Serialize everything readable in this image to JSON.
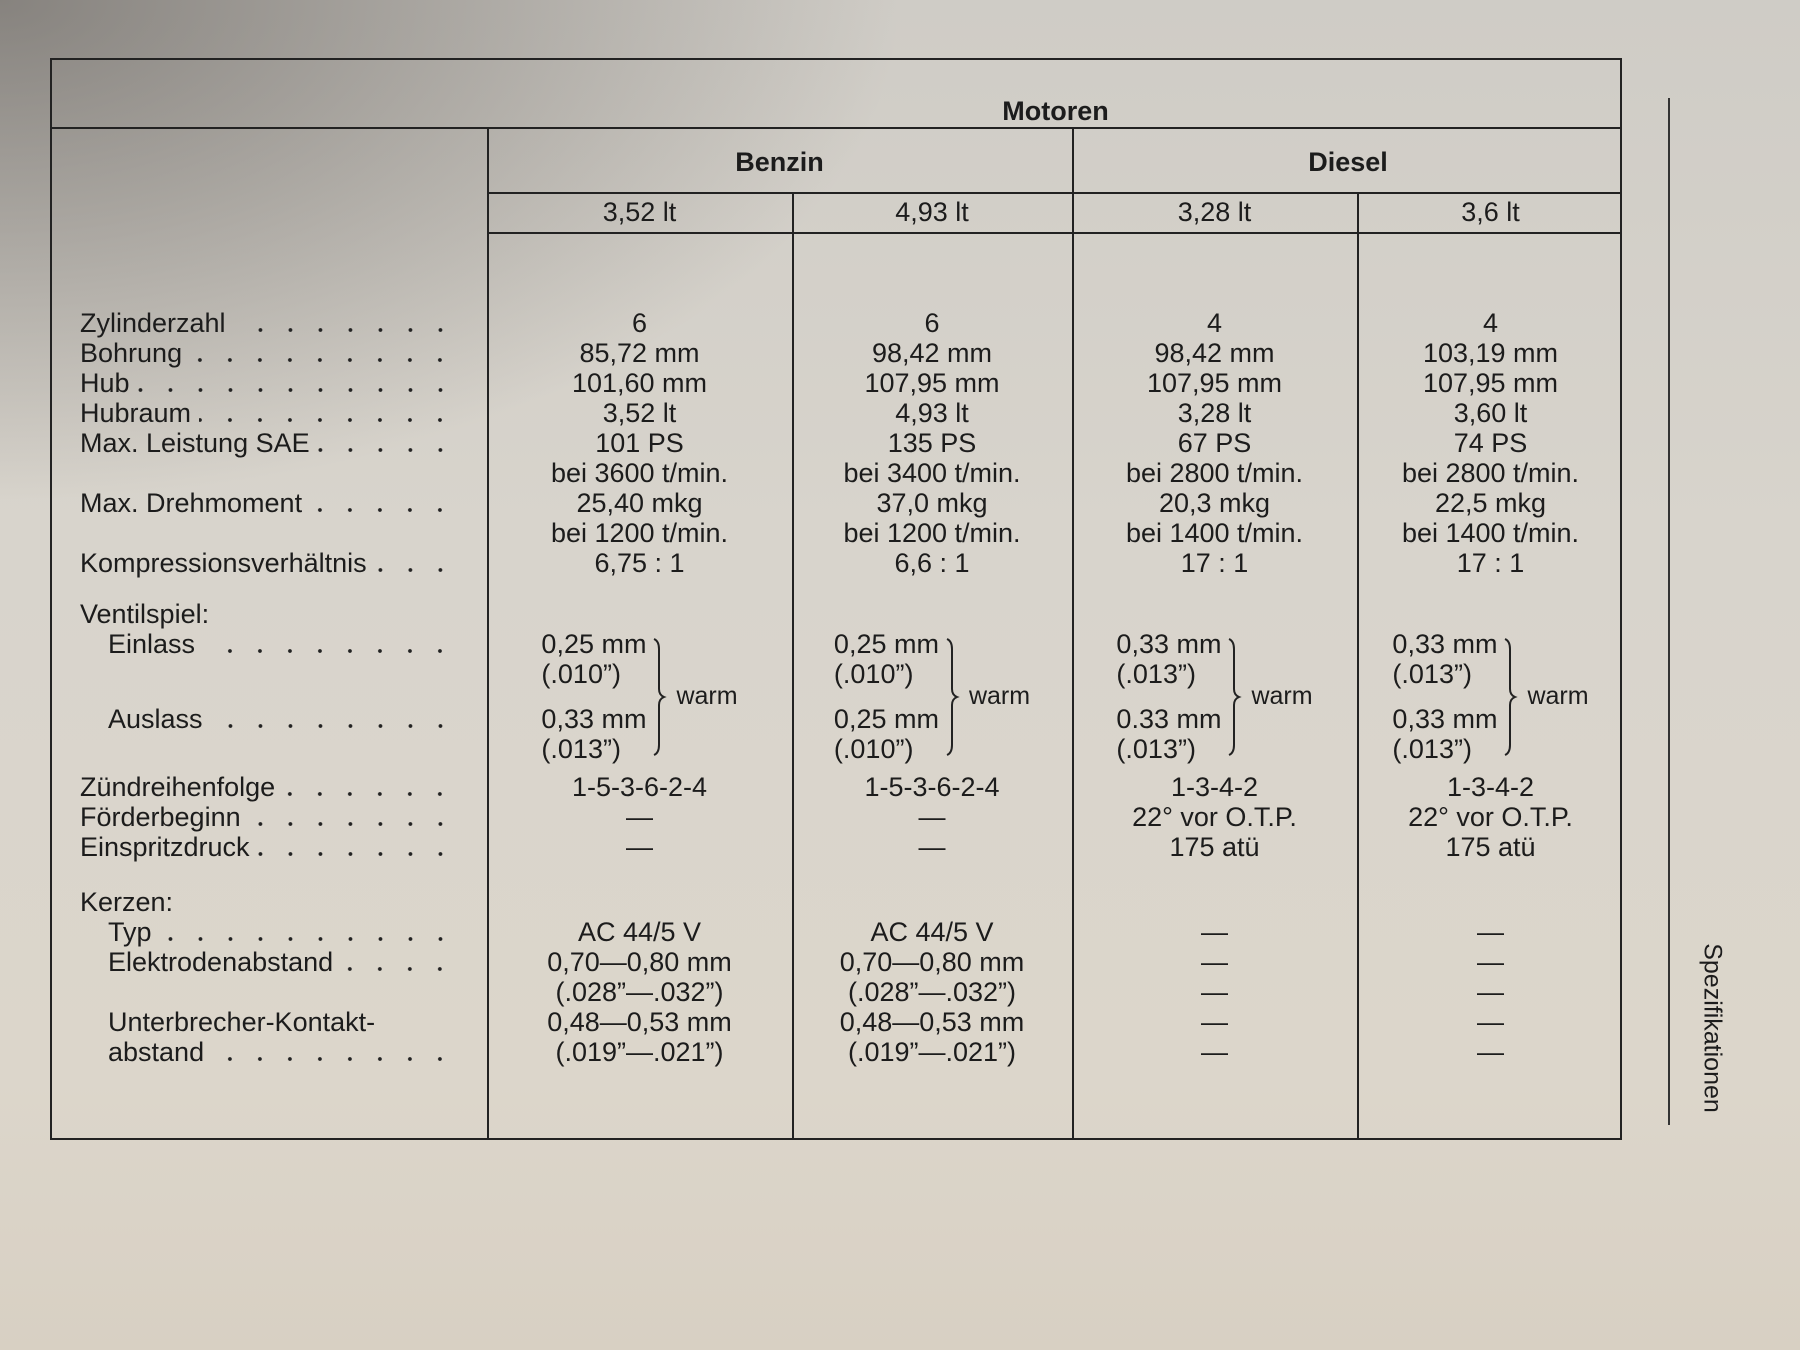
{
  "header": {
    "title": "Motoren",
    "groups": [
      {
        "label": "Benzin",
        "engines": [
          "3,52 lt",
          "4,93 lt"
        ]
      },
      {
        "label": "Diesel",
        "engines": [
          "3,28 lt",
          "3,6 lt"
        ]
      }
    ]
  },
  "main_rows": [
    {
      "label": "Zylinderzahl",
      "values": [
        "6",
        "6",
        "4",
        "4"
      ]
    },
    {
      "label": "Bohrung",
      "values": [
        "85,72 mm",
        "98,42 mm",
        "98,42 mm",
        "103,19 mm"
      ]
    },
    {
      "label": "Hub",
      "values": [
        "101,60 mm",
        "107,95 mm",
        "107,95 mm",
        "107,95 mm"
      ]
    },
    {
      "label": "Hubraum",
      "values": [
        "3,52 lt",
        "4,93 lt",
        "3,28 lt",
        "3,60 lt"
      ]
    },
    {
      "label": "Max. Leistung SAE",
      "values": [
        "101 PS",
        "135 PS",
        "67 PS",
        "74 PS"
      ]
    },
    {
      "label": "",
      "values": [
        "bei 3600 t/min.",
        "bei 3400 t/min.",
        "bei 2800 t/min.",
        "bei 2800 t/min."
      ]
    },
    {
      "label": "Max. Drehmoment",
      "values": [
        "25,40 mkg",
        "37,0 mkg",
        "20,3 mkg",
        "22,5 mkg"
      ]
    },
    {
      "label": "",
      "values": [
        "bei 1200 t/min.",
        "bei 1200 t/min.",
        "bei 1400 t/min.",
        "bei 1400 t/min."
      ]
    },
    {
      "label": "Kompressionsverhältnis",
      "values": [
        "6,75 : 1",
        "6,6 : 1",
        "17 : 1",
        "17 : 1"
      ]
    }
  ],
  "ventilspiel": {
    "label": "Ventilspiel:",
    "einlass_label": "Einlass",
    "auslass_label": "Auslass",
    "note": "warm",
    "columns": [
      {
        "einlass": [
          "0,25 mm",
          "(.010”)"
        ],
        "auslass": [
          "0,33 mm",
          "(.013”)"
        ]
      },
      {
        "einlass": [
          "0,25 mm",
          "(.010”)"
        ],
        "auslass": [
          "0,25 mm",
          "(.010”)"
        ]
      },
      {
        "einlass": [
          "0,33 mm",
          "(.013”)"
        ],
        "auslass": [
          "0.33 mm",
          "(.013”)"
        ]
      },
      {
        "einlass": [
          "0,33 mm",
          "(.013”)"
        ],
        "auslass": [
          "0,33 mm",
          "(.013”)"
        ]
      }
    ]
  },
  "timing_rows": [
    {
      "label": "Zündreihenfolge",
      "values": [
        "1-5-3-6-2-4",
        "1-5-3-6-2-4",
        "1-3-4-2",
        "1-3-4-2"
      ]
    },
    {
      "label": "Förderbeginn",
      "values": [
        "—",
        "—",
        "22° vor O.T.P.",
        "22° vor O.T.P."
      ]
    },
    {
      "label": "Einspritzdruck",
      "values": [
        "—",
        "—",
        "175 atü",
        "175 atü"
      ]
    }
  ],
  "kerzen": {
    "label": "Kerzen:",
    "rows": [
      {
        "label": "Typ",
        "values": [
          "AC 44/5 V",
          "AC 44/5 V",
          "—",
          "—"
        ]
      },
      {
        "label": "Elektrodenabstand",
        "values": [
          "0,70—0,80 mm",
          "0,70—0,80 mm",
          "—",
          "—"
        ]
      },
      {
        "label": "",
        "values": [
          "(.028”—.032”)",
          "(.028”—.032”)",
          "—",
          "—"
        ]
      },
      {
        "label": "Unterbrecher-Kontakt-",
        "values": [
          "0,48—0,53 mm",
          "0,48—0,53 mm",
          "—",
          "—"
        ]
      },
      {
        "label": "abstand",
        "values": [
          "(.019”—.021”)",
          "(.019”—.021”)",
          "—",
          "—"
        ]
      }
    ]
  },
  "side_label": "Spezifikationen"
}
